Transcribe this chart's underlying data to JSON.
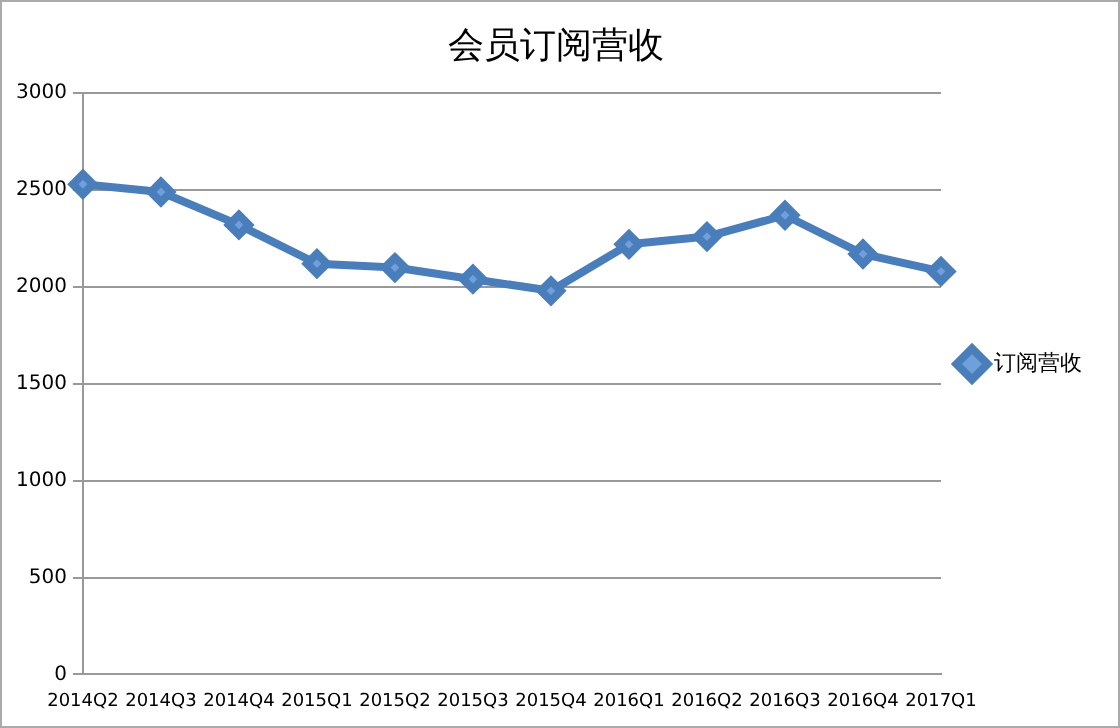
{
  "chart_data": {
    "type": "line",
    "title": "会员订阅营收",
    "categories": [
      "2014Q2",
      "2014Q3",
      "2014Q4",
      "2015Q1",
      "2015Q2",
      "2015Q3",
      "2015Q4",
      "2016Q1",
      "2016Q2",
      "2016Q3",
      "2016Q4",
      "2017Q1"
    ],
    "series": [
      {
        "name": "订阅营收",
        "color": "#4a7ebb",
        "values": [
          2530,
          2490,
          2320,
          2120,
          2100,
          2040,
          1980,
          2220,
          2260,
          2370,
          2170,
          2080
        ]
      }
    ],
    "ylim": [
      0,
      3000
    ],
    "yticks": [
      0,
      500,
      1000,
      1500,
      2000,
      2500,
      3000
    ],
    "grid": "y",
    "legend": "right",
    "marker": "diamond",
    "line_style": "solid"
  }
}
